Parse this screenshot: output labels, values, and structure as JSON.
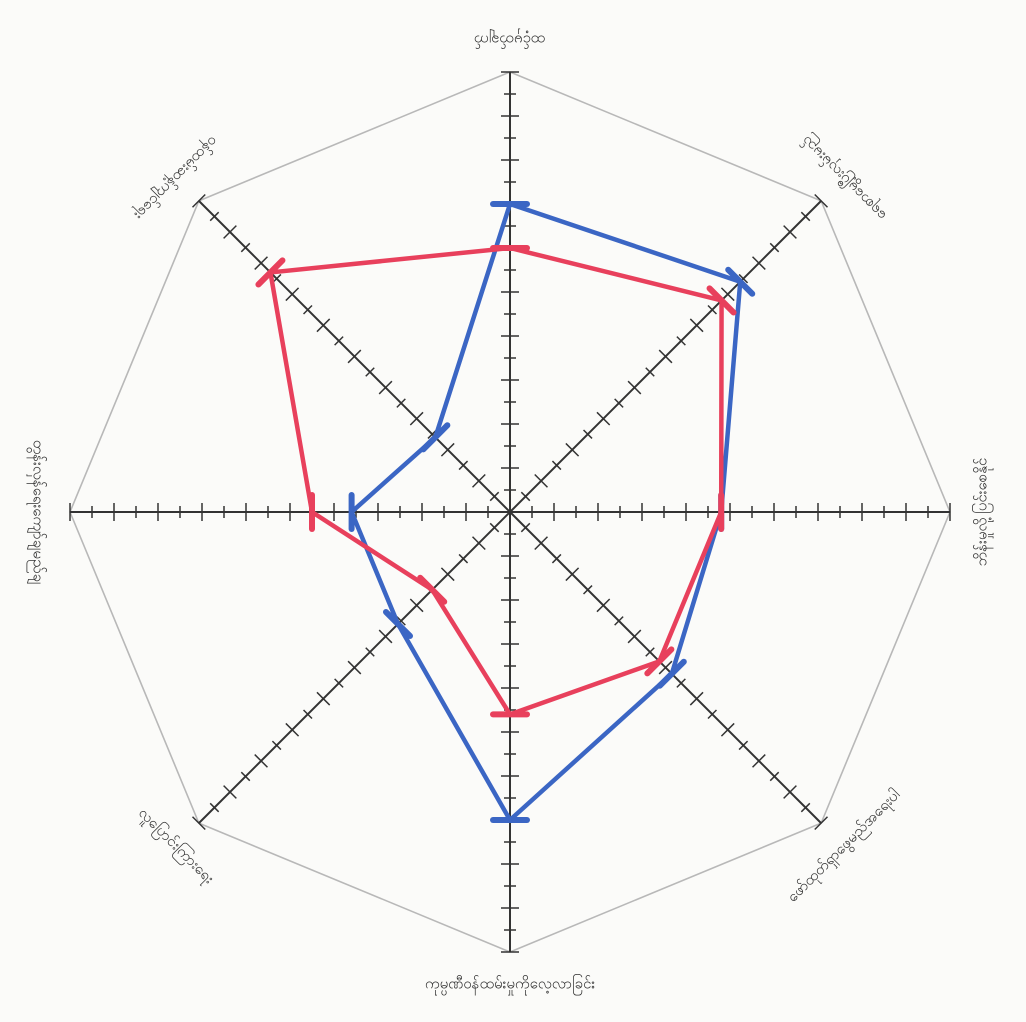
{
  "chart_data": {
    "type": "radar",
    "axes": [
      "ထင့်မှတ်ချက်",
      "ရေစာမွေ့ပြီးလှမ်းမည်",
      "ဘိန်းမှုလို့ပြင်းစေနိုင်",
      "ဖော်ထုတ်ရှာဖွေမည်အရေးပါ",
      "ကုမ္ပဏီဝန်ထမ်းမှုကိုလေ့လာခြင်း",
      "လူပြောင်းကြားရေး",
      "တွန်းလှန်ရေးကျော်ချမည်ချ",
      "ဝန်ထမ်းဆန့်ကျင်ရေး"
    ],
    "range": [
      0,
      10
    ],
    "tick_count": 10,
    "grid": "octagon",
    "series": [
      {
        "values": [
          7.0,
          7.4,
          4.8,
          5.2,
          7.0,
          3.6,
          3.6,
          2.4
        ],
        "color": "#3b66c4"
      },
      {
        "values": [
          6.0,
          6.8,
          4.8,
          4.8,
          4.6,
          2.5,
          4.5,
          7.7
        ],
        "color": "#e8405c"
      }
    ]
  }
}
